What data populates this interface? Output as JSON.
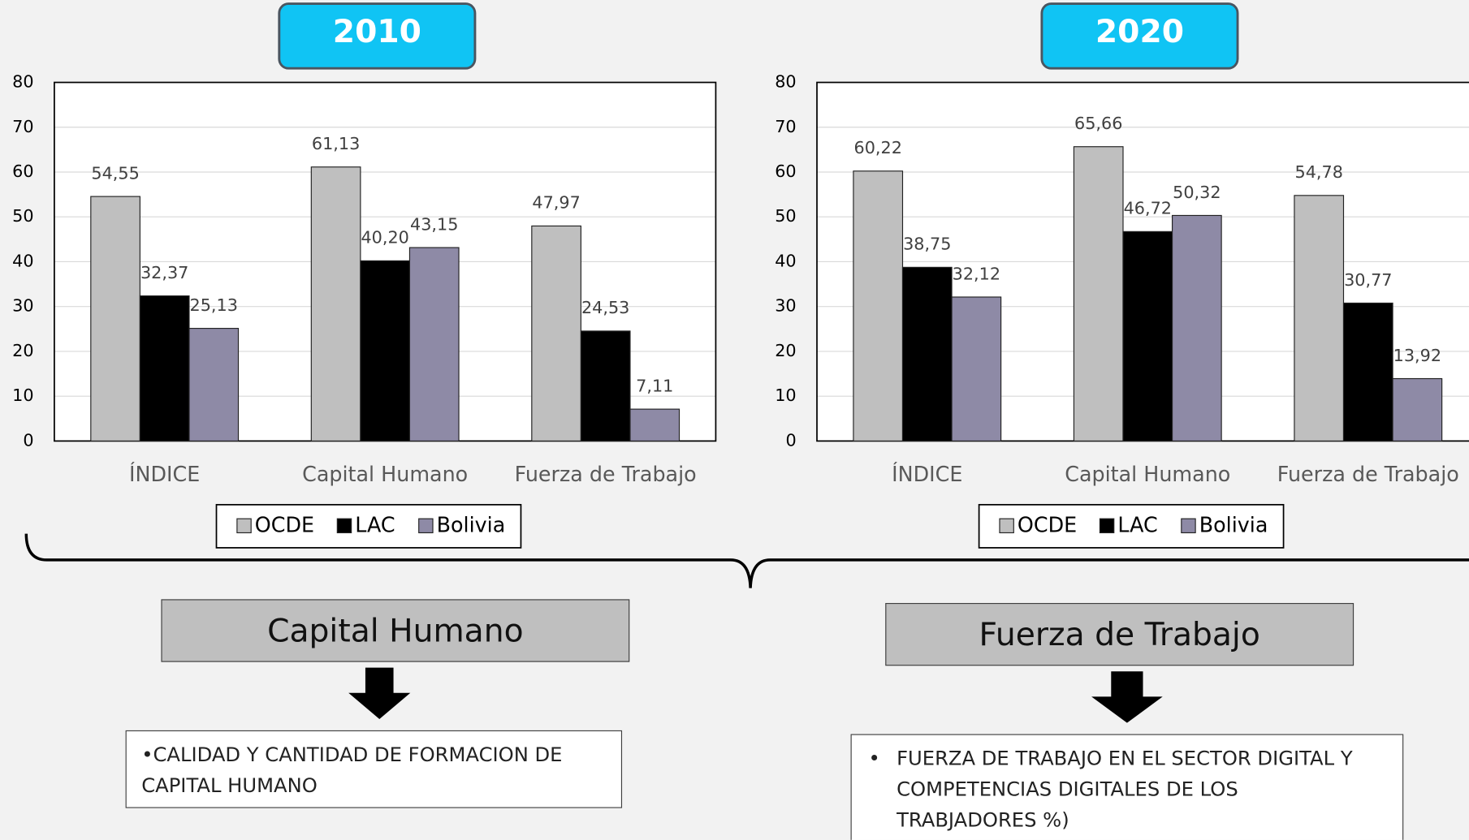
{
  "chart_data": [
    {
      "type": "bar",
      "title": "2010",
      "categories": [
        "ÍNDICE",
        "Capital Humano",
        "Fuerza de Trabajo"
      ],
      "series": [
        {
          "name": "OCDE",
          "color": "#bfbfbf",
          "values": [
            54.55,
            61.13,
            47.97
          ],
          "value_labels": [
            "54,55",
            "61,13",
            "47,97"
          ]
        },
        {
          "name": "LAC",
          "color": "#000000",
          "values": [
            32.37,
            40.2,
            24.53
          ],
          "value_labels": [
            "32,37",
            "40,20",
            "24,53"
          ]
        },
        {
          "name": "Bolivia",
          "color": "#8e8aa6",
          "values": [
            25.13,
            43.15,
            7.11
          ],
          "value_labels": [
            "25,13",
            "43,15",
            "7,11"
          ]
        }
      ],
      "ylim": [
        0,
        80
      ],
      "yticks": [
        0,
        10,
        20,
        30,
        40,
        50,
        60,
        70,
        80
      ],
      "grid": true,
      "legend": "bottom"
    },
    {
      "type": "bar",
      "title": "2020",
      "categories": [
        "ÍNDICE",
        "Capital Humano",
        "Fuerza de Trabajo"
      ],
      "series": [
        {
          "name": "OCDE",
          "color": "#bfbfbf",
          "values": [
            60.22,
            65.66,
            54.78
          ],
          "value_labels": [
            "60,22",
            "65,66",
            "54,78"
          ]
        },
        {
          "name": "LAC",
          "color": "#000000",
          "values": [
            38.75,
            46.72,
            30.77
          ],
          "value_labels": [
            "38,75",
            "46,72",
            "30,77"
          ]
        },
        {
          "name": "Bolivia",
          "color": "#8e8aa6",
          "values": [
            32.12,
            50.32,
            13.92
          ],
          "value_labels": [
            "32,12",
            "50,32",
            "13,92"
          ]
        }
      ],
      "ylim": [
        0,
        80
      ],
      "yticks": [
        0,
        10,
        20,
        30,
        40,
        50,
        60,
        70,
        80
      ],
      "grid": true,
      "legend": "bottom"
    }
  ],
  "boxes": [
    {
      "heading": "Capital Humano",
      "text": "•CALIDAD Y CANTIDAD DE FORMACION DE CAPITAL HUMANO"
    },
    {
      "heading": "Fuerza de Trabajo",
      "bullet": "•",
      "text": "FUERZA DE TRABAJO EN EL SECTOR DIGITAL Y COMPETENCIAS DIGITALES DE LOS TRABJADORES %)"
    }
  ]
}
